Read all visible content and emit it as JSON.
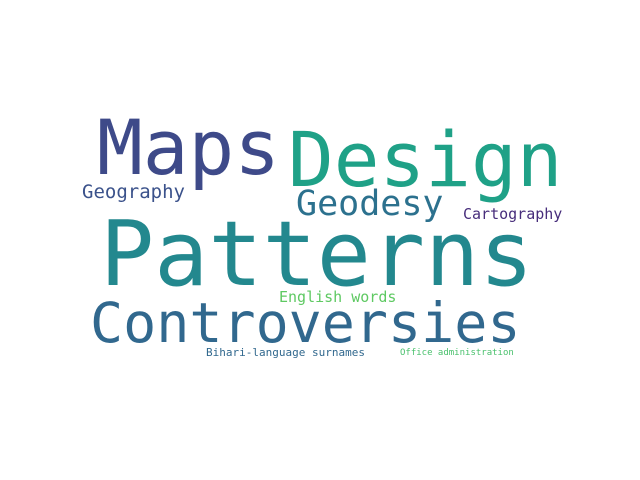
{
  "word_cloud": {
    "words": [
      {
        "text": "Patterns",
        "color": "#23888e"
      },
      {
        "text": "Maps",
        "color": "#3e4a89"
      },
      {
        "text": "Design",
        "color": "#1fa187"
      },
      {
        "text": "Controversies",
        "color": "#31688e"
      },
      {
        "text": "Geodesy",
        "color": "#2c718e"
      },
      {
        "text": "Geography",
        "color": "#3b528b"
      },
      {
        "text": "Cartography",
        "color": "#472d7b"
      },
      {
        "text": "English words",
        "color": "#5ec962"
      },
      {
        "text": "Bihari-language surnames",
        "color": "#31688e"
      },
      {
        "text": "Office administration",
        "color": "#4ac16d"
      }
    ]
  }
}
